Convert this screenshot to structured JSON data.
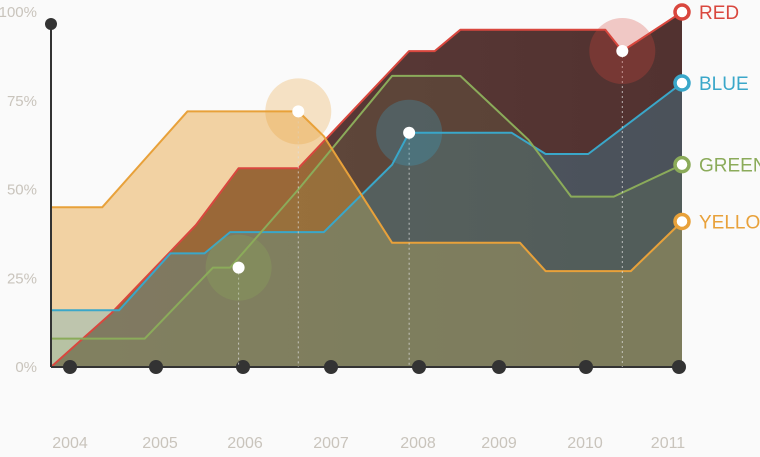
{
  "chart_data": {
    "type": "area",
    "y_unit": "%",
    "ylim": [
      0,
      100
    ],
    "y_ticks": [
      "0%",
      "25%",
      "50%",
      "75%",
      "100%"
    ],
    "x_ticks": [
      "2004",
      "2005",
      "2006",
      "2007",
      "2008",
      "2009",
      "2010",
      "2011"
    ],
    "x_range": [
      2003.8,
      2011.2
    ],
    "grid": false,
    "legend_position": "right",
    "series": [
      {
        "name": "RED",
        "color": "#d9473e",
        "points": [
          [
            2003.8,
            0
          ],
          [
            2004.5,
            15
          ],
          [
            2005.5,
            40
          ],
          [
            2006.0,
            56
          ],
          [
            2006.7,
            56
          ],
          [
            2008.0,
            89
          ],
          [
            2008.3,
            89
          ],
          [
            2008.6,
            95
          ],
          [
            2009.8,
            95
          ],
          [
            2010.3,
            95
          ],
          [
            2010.5,
            89
          ],
          [
            2011.2,
            100
          ]
        ],
        "highlight": {
          "x": 2010.5,
          "y": 89
        }
      },
      {
        "name": "BLUE",
        "color": "#3aa7c9",
        "points": [
          [
            2003.8,
            16
          ],
          [
            2004.6,
            16
          ],
          [
            2005.2,
            32
          ],
          [
            2005.6,
            32
          ],
          [
            2005.9,
            38
          ],
          [
            2007.0,
            38
          ],
          [
            2007.8,
            57
          ],
          [
            2008.0,
            66
          ],
          [
            2008.6,
            66
          ],
          [
            2009.2,
            66
          ],
          [
            2009.6,
            60
          ],
          [
            2010.1,
            60
          ],
          [
            2011.2,
            80
          ]
        ],
        "highlight": {
          "x": 2008.0,
          "y": 66
        }
      },
      {
        "name": "GREEN",
        "color": "#8bab5a",
        "points": [
          [
            2003.8,
            8
          ],
          [
            2004.9,
            8
          ],
          [
            2005.7,
            28
          ],
          [
            2005.9,
            28
          ],
          [
            2006.7,
            50
          ],
          [
            2007.8,
            82
          ],
          [
            2008.6,
            82
          ],
          [
            2009.4,
            64
          ],
          [
            2009.9,
            48
          ],
          [
            2010.4,
            48
          ],
          [
            2011.2,
            57
          ]
        ],
        "highlight": {
          "x": 2006.0,
          "y": 28
        }
      },
      {
        "name": "YELLOW",
        "color": "#e8a13a",
        "points": [
          [
            2003.8,
            45
          ],
          [
            2004.4,
            45
          ],
          [
            2005.4,
            72
          ],
          [
            2006.7,
            72
          ],
          [
            2007.0,
            65
          ],
          [
            2007.8,
            35
          ],
          [
            2008.3,
            35
          ],
          [
            2009.3,
            35
          ],
          [
            2009.6,
            27
          ],
          [
            2010.6,
            27
          ],
          [
            2011.2,
            41
          ]
        ],
        "highlight": {
          "x": 2006.7,
          "y": 72
        }
      }
    ]
  }
}
